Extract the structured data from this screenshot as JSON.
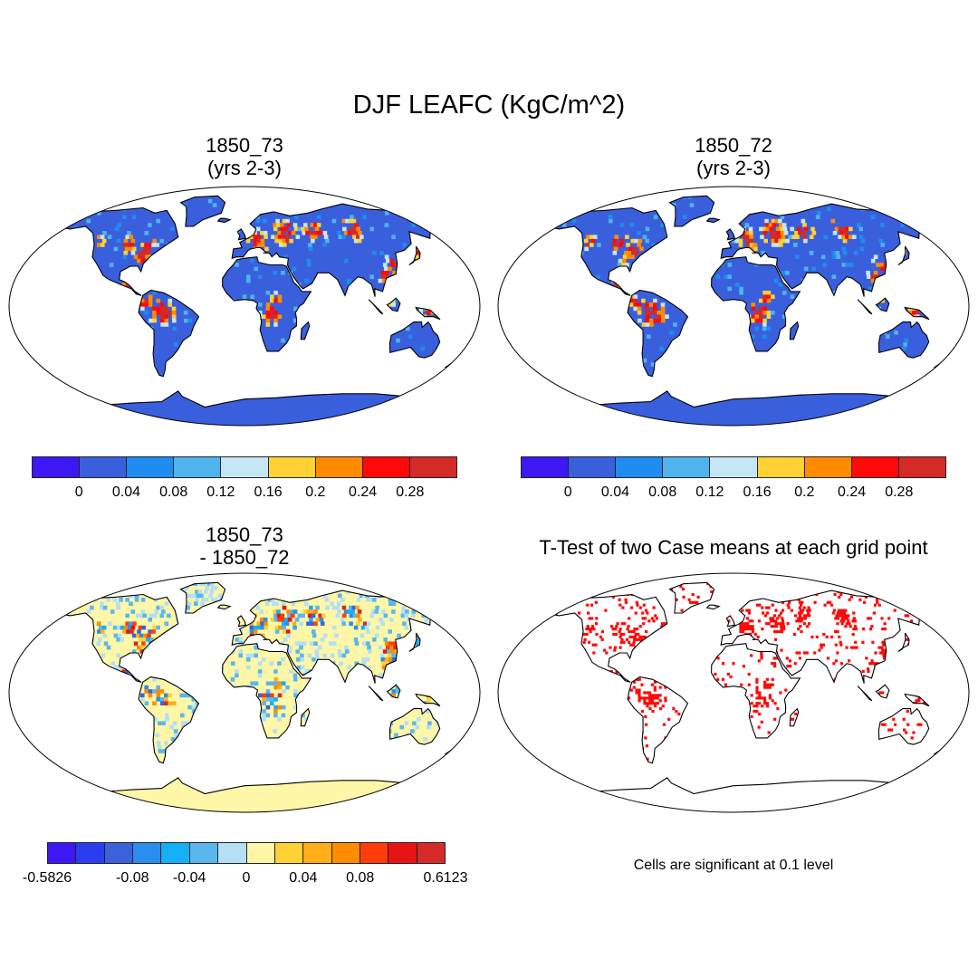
{
  "title": "DJF LEAFC (KgC/m^2)",
  "panels": [
    {
      "id": "case1",
      "title_line1": "1850_73",
      "title_line2": "(yrs 2-3)"
    },
    {
      "id": "case2",
      "title_line1": "1850_72",
      "title_line2": "(yrs 2-3)"
    },
    {
      "id": "diff",
      "title_line1": "1850_73",
      "title_line2": "- 1850_72"
    },
    {
      "id": "ttest",
      "title_line1": "T-Test of two Case means at each grid point"
    }
  ],
  "colorbars": {
    "main": {
      "colors": [
        "#3d18f5",
        "#3a5fdc",
        "#1e8cf0",
        "#4fb3ee",
        "#c5e6f5",
        "#ffd233",
        "#ff8c00",
        "#ff0a0a",
        "#d42a28"
      ],
      "labels": [
        "0",
        "0.04",
        "0.08",
        "0.12",
        "0.16",
        "0.2",
        "0.24",
        "0.28"
      ]
    },
    "diff": {
      "colors": [
        "#3d18f5",
        "#2a3ef0",
        "#3a62dc",
        "#2a8ef0",
        "#14b0f5",
        "#5ab7ee",
        "#b4dff5",
        "#fff7a8",
        "#ffd233",
        "#ffae1a",
        "#ff8c00",
        "#ff3c0a",
        "#e61414",
        "#d42a28"
      ],
      "labels": [
        "-0.5826",
        "-0.08",
        "-0.04",
        "0",
        "0.04",
        "0.08",
        "0.6123"
      ]
    }
  },
  "note": "Cells are significant at 0.1 level",
  "map_colors": {
    "ocean": "#ffffff",
    "land_base": "#3a5fdc",
    "diff_land_base": "#fff7a8",
    "significant": "#ff0a0a",
    "coastline": "#000000"
  }
}
